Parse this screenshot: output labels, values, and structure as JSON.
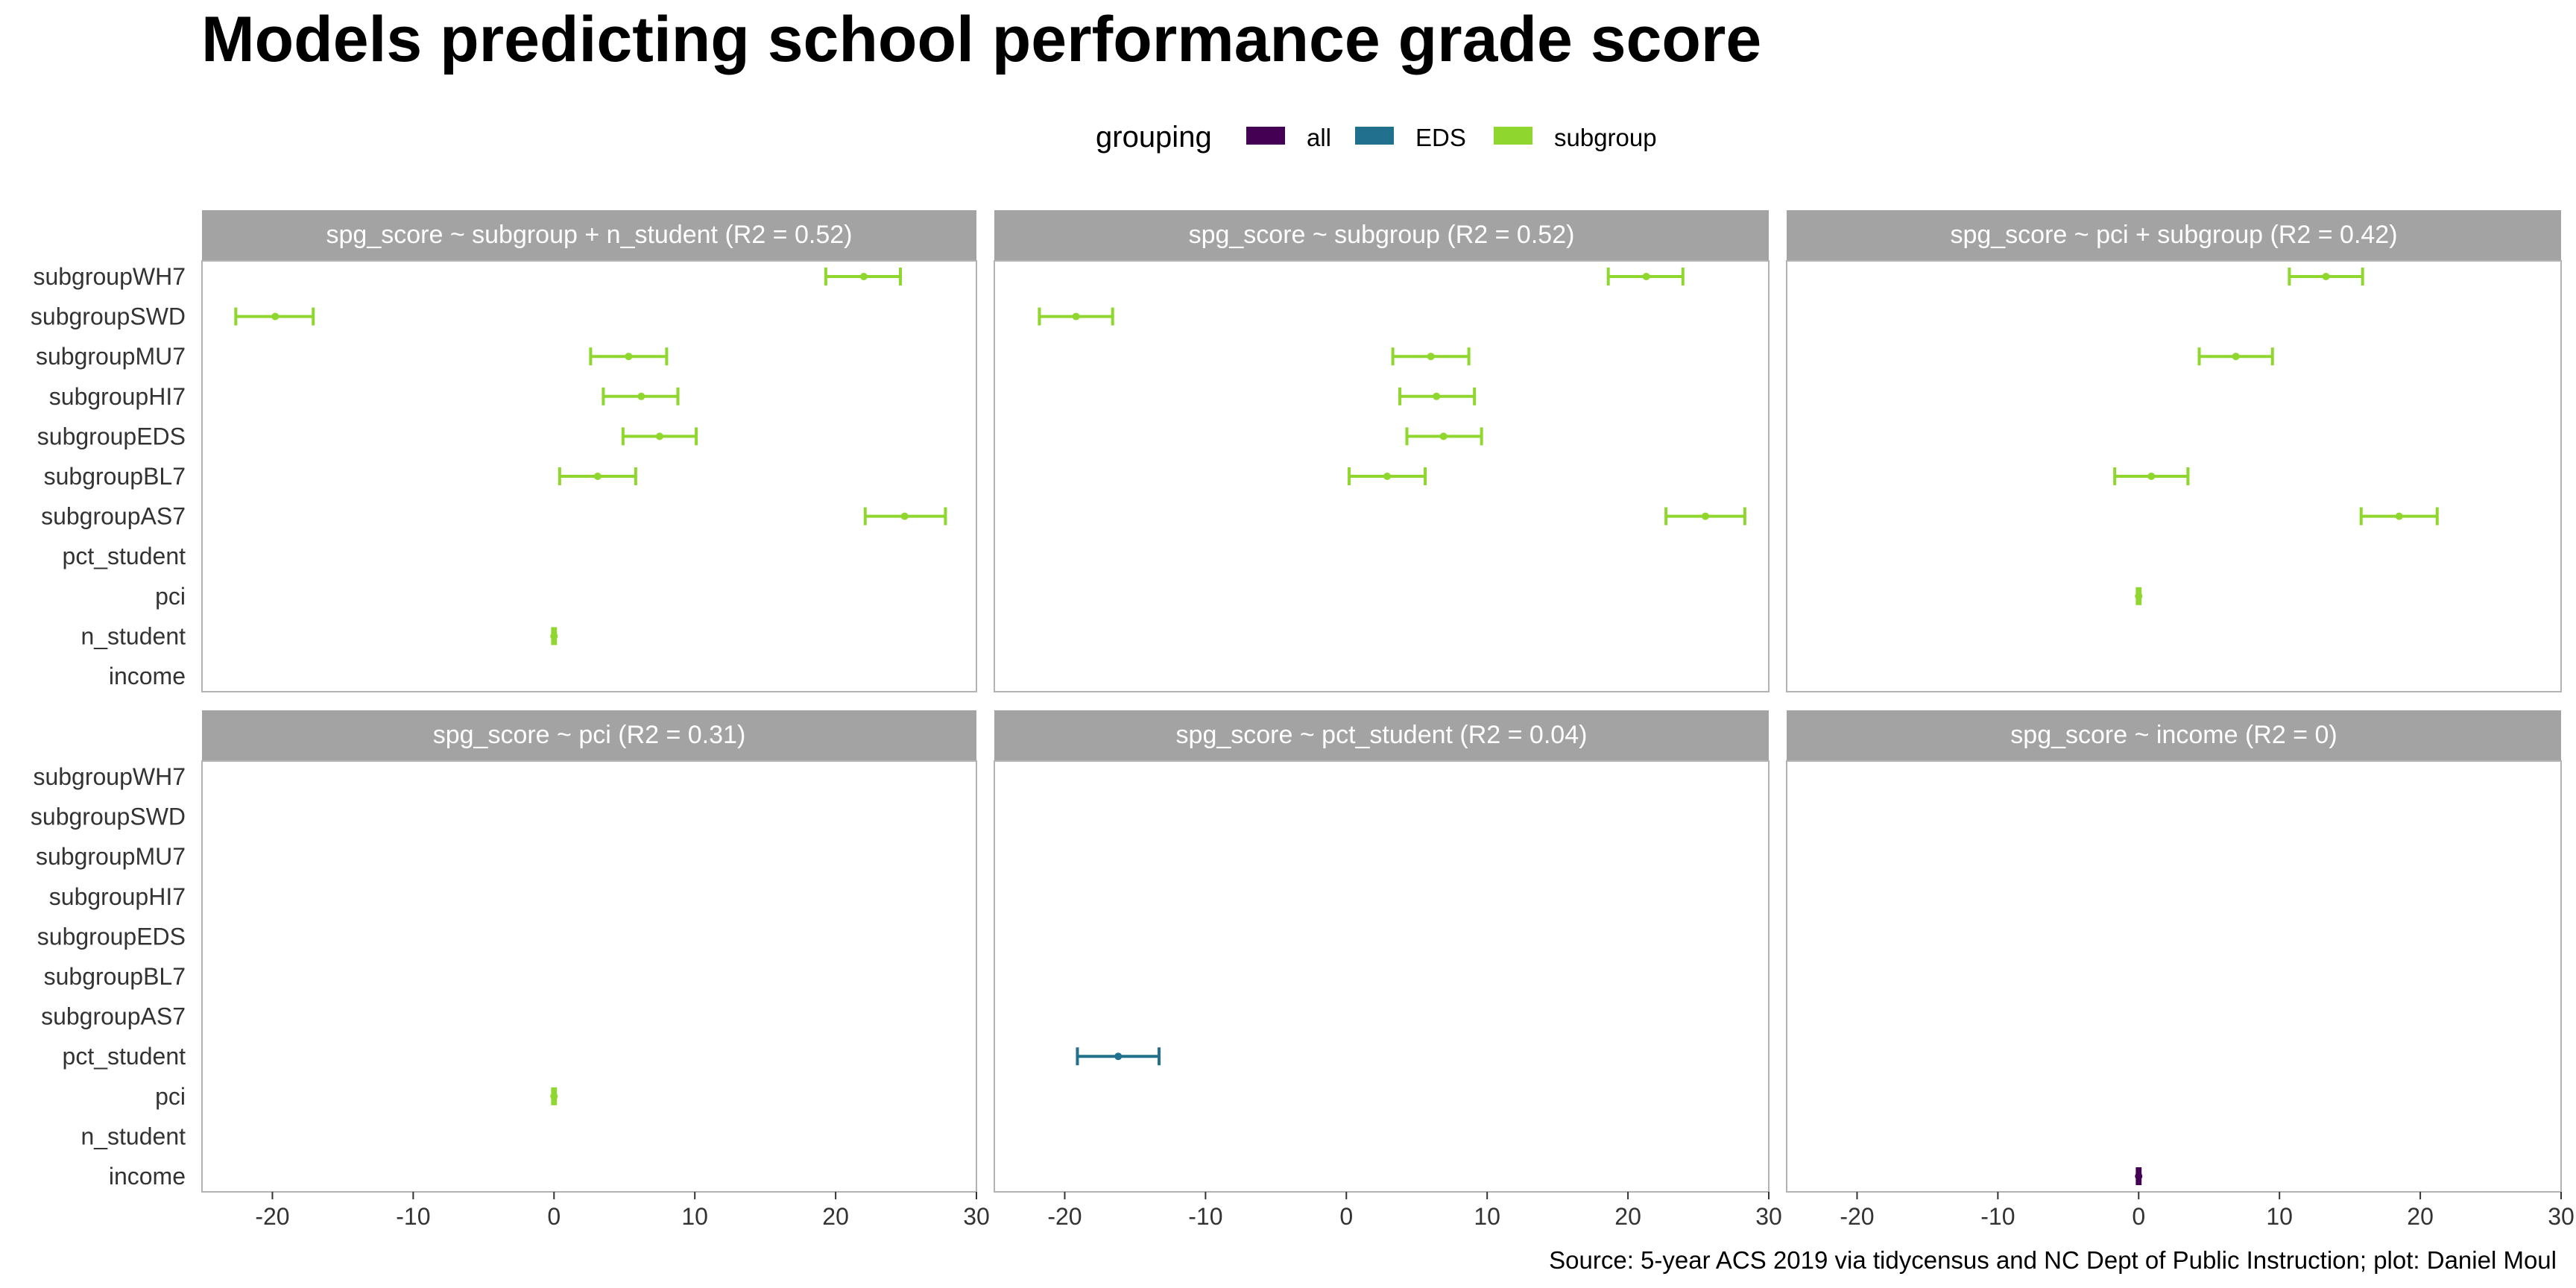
{
  "title": "Models predicting school performance grade score",
  "caption": "Source: 5-year ACS 2019 via tidycensus and NC Dept of Public Instruction; plot: Daniel Moul",
  "colors": {
    "all": "#440154",
    "EDS": "#21708E",
    "subgroup": "#8FD62F",
    "strip": "#A3A3A3",
    "panel_border": "#B3B3B3"
  },
  "chart_data": {
    "type": "scatter",
    "subtype": "coefficient plot with error bars, faceted 2x3",
    "legend": {
      "title": "grouping",
      "placement": "top",
      "entries": [
        "all",
        "EDS",
        "subgroup"
      ]
    },
    "y_categories": [
      "subgroupWH7",
      "subgroupSWD",
      "subgroupMU7",
      "subgroupHI7",
      "subgroupEDS",
      "subgroupBL7",
      "subgroupAS7",
      "pct_student",
      "pci",
      "n_student",
      "income"
    ],
    "xlim": [
      -25,
      30
    ],
    "x_ticks": [
      -20,
      -10,
      0,
      10,
      20,
      30
    ],
    "grid": false,
    "panels": [
      {
        "title": "spg_score ~ subgroup + n_student (R2 = 0.52)",
        "points": [
          {
            "term": "subgroupWH7",
            "group": "subgroup",
            "estimate": 22.0,
            "low": 19.3,
            "high": 24.6
          },
          {
            "term": "subgroupSWD",
            "group": "subgroup",
            "estimate": -19.8,
            "low": -22.6,
            "high": -17.1
          },
          {
            "term": "subgroupMU7",
            "group": "subgroup",
            "estimate": 5.3,
            "low": 2.6,
            "high": 8.0
          },
          {
            "term": "subgroupHI7",
            "group": "subgroup",
            "estimate": 6.2,
            "low": 3.5,
            "high": 8.8
          },
          {
            "term": "subgroupEDS",
            "group": "subgroup",
            "estimate": 7.5,
            "low": 4.9,
            "high": 10.1
          },
          {
            "term": "subgroupBL7",
            "group": "subgroup",
            "estimate": 3.1,
            "low": 0.4,
            "high": 5.8
          },
          {
            "term": "subgroupAS7",
            "group": "subgroup",
            "estimate": 24.9,
            "low": 22.1,
            "high": 27.8
          },
          {
            "term": "n_student",
            "group": "subgroup",
            "estimate": 0.0,
            "low": -0.1,
            "high": 0.1
          }
        ]
      },
      {
        "title": "spg_score ~ subgroup (R2 = 0.52)",
        "points": [
          {
            "term": "subgroupWH7",
            "group": "subgroup",
            "estimate": 21.3,
            "low": 18.6,
            "high": 23.9
          },
          {
            "term": "subgroupSWD",
            "group": "subgroup",
            "estimate": -19.2,
            "low": -21.8,
            "high": -16.6
          },
          {
            "term": "subgroupMU7",
            "group": "subgroup",
            "estimate": 6.0,
            "low": 3.3,
            "high": 8.7
          },
          {
            "term": "subgroupHI7",
            "group": "subgroup",
            "estimate": 6.4,
            "low": 3.8,
            "high": 9.1
          },
          {
            "term": "subgroupEDS",
            "group": "subgroup",
            "estimate": 6.9,
            "low": 4.3,
            "high": 9.6
          },
          {
            "term": "subgroupBL7",
            "group": "subgroup",
            "estimate": 2.9,
            "low": 0.2,
            "high": 5.6
          },
          {
            "term": "subgroupAS7",
            "group": "subgroup",
            "estimate": 25.5,
            "low": 22.7,
            "high": 28.3
          }
        ]
      },
      {
        "title": "spg_score ~ pci + subgroup (R2 = 0.42)",
        "points": [
          {
            "term": "subgroupWH7",
            "group": "subgroup",
            "estimate": 13.3,
            "low": 10.7,
            "high": 15.9
          },
          {
            "term": "subgroupMU7",
            "group": "subgroup",
            "estimate": 6.9,
            "low": 4.3,
            "high": 9.5
          },
          {
            "term": "subgroupBL7",
            "group": "subgroup",
            "estimate": 0.9,
            "low": -1.7,
            "high": 3.5
          },
          {
            "term": "subgroupAS7",
            "group": "subgroup",
            "estimate": 18.5,
            "low": 15.8,
            "high": 21.2
          },
          {
            "term": "pci",
            "group": "subgroup",
            "estimate": 0.0,
            "low": -0.1,
            "high": 0.1
          }
        ]
      },
      {
        "title": "spg_score ~ pci (R2 = 0.31)",
        "points": [
          {
            "term": "pci",
            "group": "subgroup",
            "estimate": 0.0,
            "low": -0.1,
            "high": 0.1
          }
        ]
      },
      {
        "title": "spg_score ~ pct_student (R2 = 0.04)",
        "points": [
          {
            "term": "pct_student",
            "group": "EDS",
            "estimate": -16.2,
            "low": -19.1,
            "high": -13.3
          }
        ]
      },
      {
        "title": "spg_score ~ income (R2 = 0)",
        "points": [
          {
            "term": "income",
            "group": "all",
            "estimate": 0.0,
            "low": -0.1,
            "high": 0.1
          }
        ]
      }
    ]
  }
}
